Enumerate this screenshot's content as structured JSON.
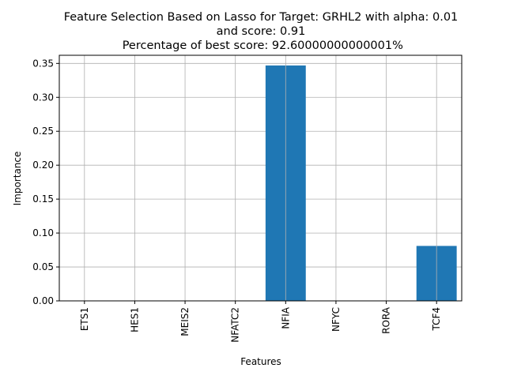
{
  "chart_data": {
    "type": "bar",
    "title_lines": [
      "Feature Selection Based on Lasso for Target: GRHL2 with alpha: 0.01",
      "and score: 0.91",
      " Percentage of best score: 92.60000000000001%"
    ],
    "xlabel": "Features",
    "ylabel": "Importance",
    "categories": [
      "ETS1",
      "HES1",
      "MEIS2",
      "NFATC2",
      "NFIA",
      "NFYC",
      "RORA",
      "TCF4"
    ],
    "values": [
      0,
      0,
      0,
      0,
      0.347,
      0,
      0,
      0.081
    ],
    "ylim": [
      0,
      0.362
    ],
    "yticks": [
      0.0,
      0.05,
      0.1,
      0.15,
      0.2,
      0.25,
      0.3,
      0.35
    ],
    "ytick_labels": [
      "0.00",
      "0.05",
      "0.10",
      "0.15",
      "0.20",
      "0.25",
      "0.30",
      "0.35"
    ],
    "grid": true,
    "bar_color": "#1f77b4",
    "grid_color": "#b0b0b0"
  }
}
